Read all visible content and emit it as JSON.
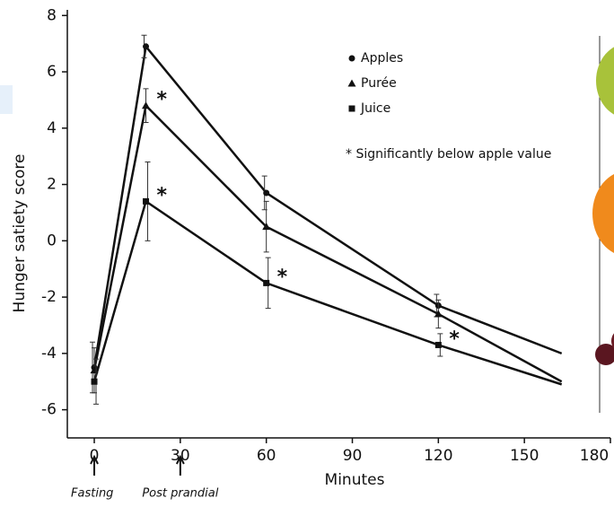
{
  "chart_data": {
    "type": "line",
    "ylabel": "Hunger satiety score",
    "xlabel": "Minutes",
    "x": [
      0,
      18,
      60,
      120,
      163
    ],
    "xlim": [
      -9.4,
      180
    ],
    "xticks": [
      0,
      30,
      60,
      90,
      120,
      150,
      180
    ],
    "ylim": [
      -7,
      8.2
    ],
    "yticks": [
      -6,
      -4,
      -2,
      0,
      2,
      4,
      6,
      8
    ],
    "series": [
      {
        "name": "Apples",
        "marker": "circle",
        "color": "#111111",
        "values": [
          -4.5,
          6.9,
          1.7,
          -2.3,
          -4.0
        ],
        "errors": [
          0.9,
          0.4,
          0.6,
          0.4,
          null
        ]
      },
      {
        "name": "Purée",
        "marker": "triangle",
        "color": "#111111",
        "values": [
          -4.6,
          4.8,
          0.5,
          -2.6,
          -5.0
        ],
        "errors": [
          0.8,
          0.6,
          0.9,
          0.5,
          null
        ]
      },
      {
        "name": "Juice",
        "marker": "square",
        "color": "#111111",
        "values": [
          -5.0,
          1.4,
          -1.5,
          -3.7,
          -5.1
        ],
        "errors": [
          0.8,
          1.4,
          0.9,
          0.4,
          null
        ]
      }
    ],
    "significance_note": "* Significantly below apple value",
    "stars": [
      {
        "text": "*",
        "series": 1,
        "index": 1
      },
      {
        "text": "*",
        "series": 2,
        "index": 1
      },
      {
        "text": "*",
        "series": 2,
        "index": 2
      },
      {
        "text": "*",
        "series": 2,
        "index": 3
      }
    ],
    "time_markers": [
      {
        "x": 0,
        "label": "Fasting"
      },
      {
        "x": 30,
        "label": "Post prandial"
      }
    ]
  }
}
